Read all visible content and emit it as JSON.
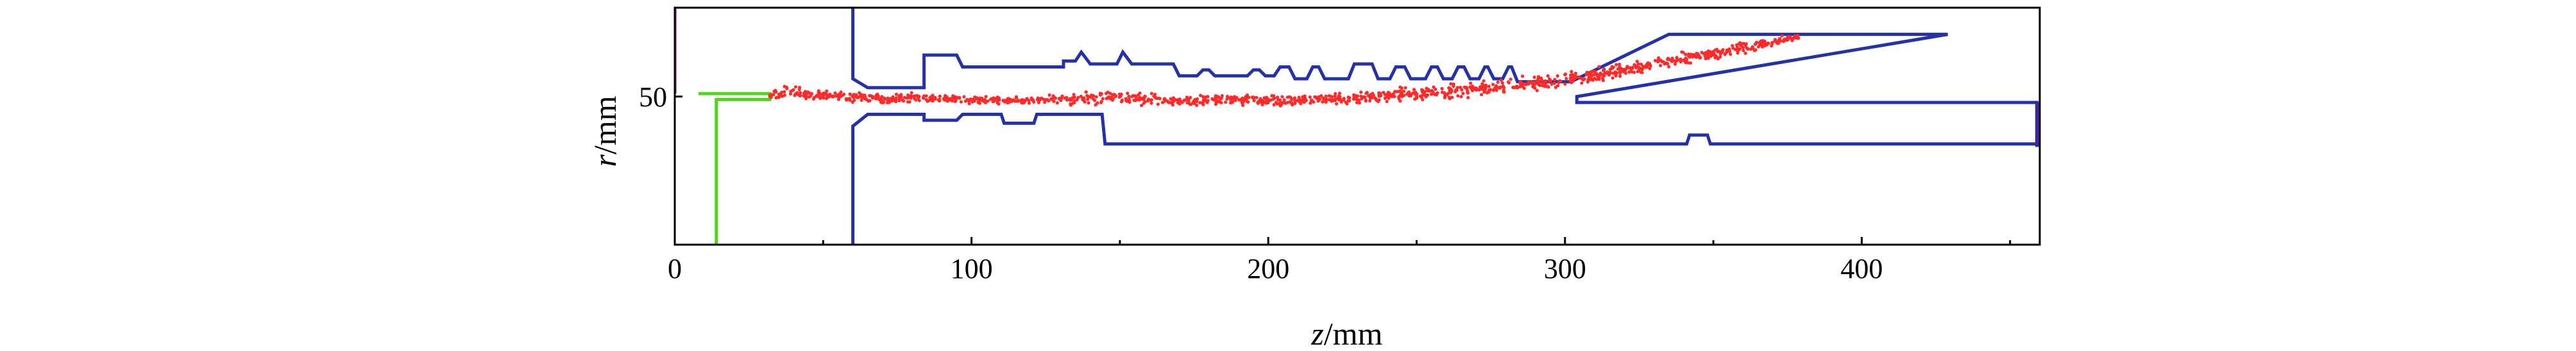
{
  "chart_data": {
    "type": "scatter",
    "title": "",
    "xlabel": {
      "var": "z",
      "unit": "/mm"
    },
    "ylabel": {
      "var": "r",
      "unit": "/mm"
    },
    "xlim": [
      0,
      460
    ],
    "ylim": [
      0,
      80
    ],
    "xticks": [
      0,
      100,
      200,
      300,
      400
    ],
    "yticks": [
      50
    ],
    "grid": false,
    "legend": "none",
    "colors": {
      "structure": "#2431a8",
      "beam": "#ff2a2a",
      "cathode": "#4fd61a",
      "edge": "#b000b0",
      "axes": "#000000"
    },
    "series": [
      {
        "kind": "structure_outline",
        "color": "#2431a8",
        "upper_wall": [
          [
            60,
            81
          ],
          [
            60,
            56
          ],
          [
            65,
            53
          ],
          [
            84,
            53
          ],
          [
            84,
            64
          ],
          [
            95,
            64
          ],
          [
            97,
            60
          ],
          [
            131,
            60
          ],
          [
            131,
            62
          ],
          [
            135,
            62
          ],
          [
            137,
            65
          ],
          [
            140,
            61
          ],
          [
            149,
            61
          ],
          [
            151,
            65
          ],
          [
            154,
            61
          ],
          [
            168,
            61
          ],
          [
            170,
            57
          ],
          [
            176,
            57
          ],
          [
            178,
            59
          ],
          [
            180,
            59
          ],
          [
            182,
            57
          ],
          [
            193,
            57
          ],
          [
            195,
            59
          ],
          [
            197,
            59
          ],
          [
            199,
            57
          ],
          [
            202,
            57
          ],
          [
            204,
            60
          ],
          [
            207,
            60
          ],
          [
            209,
            56
          ],
          [
            213,
            56
          ],
          [
            215,
            60
          ],
          [
            217,
            60
          ],
          [
            219,
            56
          ],
          [
            227,
            56
          ],
          [
            229,
            61
          ],
          [
            235,
            61
          ],
          [
            237,
            56
          ],
          [
            241,
            56
          ],
          [
            243,
            60
          ],
          [
            246,
            60
          ],
          [
            248,
            56
          ],
          [
            253,
            56
          ],
          [
            255,
            60
          ],
          [
            257,
            60
          ],
          [
            259,
            56
          ],
          [
            262,
            56
          ],
          [
            264,
            60
          ],
          [
            266,
            60
          ],
          [
            268,
            56
          ],
          [
            271,
            56
          ],
          [
            273,
            60
          ],
          [
            274,
            60
          ],
          [
            276,
            56
          ],
          [
            279,
            56
          ],
          [
            281,
            60
          ],
          [
            282,
            60
          ],
          [
            284,
            55
          ],
          [
            302,
            55
          ],
          [
            335,
            71
          ],
          [
            429,
            71
          ]
        ],
        "collector": [
          [
            429,
            71
          ],
          [
            304,
            50
          ],
          [
            304,
            48
          ],
          [
            459,
            48
          ],
          [
            459,
            33
          ]
        ],
        "lower_wall": [
          [
            60,
            0
          ],
          [
            60,
            40
          ],
          [
            65,
            44
          ],
          [
            84,
            44
          ],
          [
            84,
            42
          ],
          [
            95,
            42
          ],
          [
            97,
            44
          ],
          [
            110,
            44
          ],
          [
            111,
            41
          ],
          [
            121,
            41
          ],
          [
            122,
            44
          ],
          [
            144,
            44
          ],
          [
            145,
            34
          ],
          [
            341,
            34
          ],
          [
            342,
            37
          ],
          [
            348,
            37
          ],
          [
            349,
            34
          ],
          [
            459,
            34
          ]
        ]
      },
      {
        "kind": "cathode",
        "color": "#4fd61a",
        "path": [
          [
            8,
            51
          ],
          [
            32,
            51
          ],
          [
            32,
            49
          ],
          [
            14,
            49
          ],
          [
            14,
            0
          ]
        ]
      },
      {
        "name": "",
        "kind": "electron_beam_envelope",
        "color": "#ff2a2a",
        "envelope": [
          {
            "z": 32,
            "r": 50.5,
            "w": 1.2
          },
          {
            "z": 38,
            "r": 51.5,
            "w": 3.5
          },
          {
            "z": 46,
            "r": 50.5,
            "w": 1.8
          },
          {
            "z": 70,
            "r": 49.5,
            "w": 2.3
          },
          {
            "z": 90,
            "r": 49.5,
            "w": 1.8
          },
          {
            "z": 110,
            "r": 48.5,
            "w": 1.5
          },
          {
            "z": 130,
            "r": 49.0,
            "w": 2.5
          },
          {
            "z": 150,
            "r": 49.5,
            "w": 3.0
          },
          {
            "z": 170,
            "r": 48.5,
            "w": 1.8
          },
          {
            "z": 190,
            "r": 49.0,
            "w": 2.5
          },
          {
            "z": 210,
            "r": 48.5,
            "w": 2.0
          },
          {
            "z": 230,
            "r": 49.5,
            "w": 2.5
          },
          {
            "z": 250,
            "r": 51.0,
            "w": 3.0
          },
          {
            "z": 270,
            "r": 52.5,
            "w": 3.2
          },
          {
            "z": 290,
            "r": 54.5,
            "w": 3.5
          },
          {
            "z": 310,
            "r": 57.0,
            "w": 3.5
          },
          {
            "z": 330,
            "r": 61.0,
            "w": 3.0
          },
          {
            "z": 350,
            "r": 64.5,
            "w": 2.5
          },
          {
            "z": 370,
            "r": 68.5,
            "w": 2.0
          },
          {
            "z": 380,
            "r": 70.5,
            "w": 1.5
          }
        ]
      }
    ]
  }
}
